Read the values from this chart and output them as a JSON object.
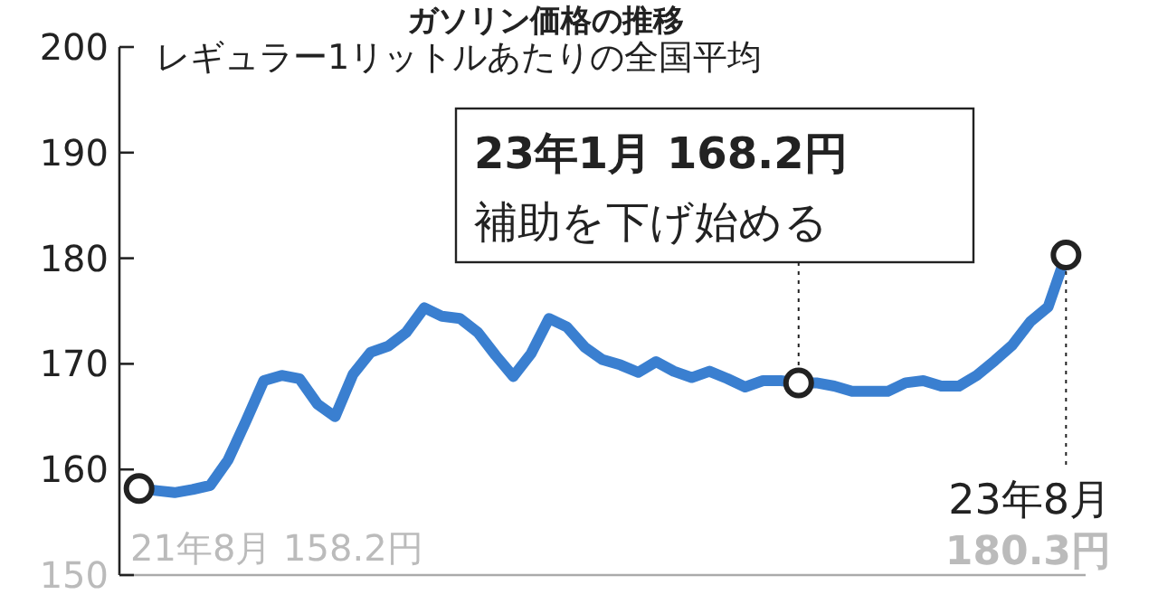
{
  "chart_data": {
    "type": "line",
    "title": "ガソリン価格の推移",
    "subtitle": "レギュラー1リットルあたりの全国平均",
    "categories": [
      null,
      null,
      null,
      null,
      null,
      null,
      null,
      null,
      null,
      null,
      null,
      null,
      null,
      null,
      null,
      null,
      null,
      null,
      null,
      null,
      null,
      null,
      null,
      null,
      null,
      null,
      null,
      null,
      null,
      null,
      null,
      null,
      null,
      null,
      null,
      null,
      null,
      null,
      null,
      null,
      null,
      null,
      null,
      null,
      null,
      null,
      null,
      null,
      null,
      null,
      null,
      null,
      null
    ],
    "series": [
      {
        "color": "#3a7fd0",
        "values": [
          158.2,
          158.0,
          157.8,
          158.1,
          158.5,
          160.9,
          164.6,
          168.4,
          168.9,
          168.6,
          166.2,
          165.0,
          169.0,
          171.1,
          171.7,
          173.0,
          175.3,
          174.5,
          174.3,
          173.0,
          170.8,
          168.8,
          171.0,
          174.3,
          173.5,
          171.6,
          170.4,
          169.9,
          169.2,
          170.2,
          169.3,
          168.7,
          169.3,
          168.6,
          167.8,
          168.4,
          168.4,
          168.2,
          168.2,
          167.9,
          167.4,
          167.4,
          167.4,
          168.2,
          168.4,
          167.9,
          167.9,
          168.9,
          170.3,
          171.8,
          174.0,
          175.4,
          180.3
        ]
      },
      {
        "type": "scatter",
        "color": "#222222",
        "marker": "circle",
        "values": [
          158.2,
          null,
          null,
          null,
          null,
          null,
          null,
          null,
          null,
          null,
          null,
          null,
          null,
          null,
          null,
          null,
          null,
          null,
          null,
          null,
          null,
          null,
          null,
          null,
          null,
          null,
          null,
          null,
          null,
          null,
          null,
          null,
          null,
          null,
          null,
          null,
          null,
          168.2,
          null,
          null,
          null,
          null,
          null,
          null,
          null,
          null,
          null,
          null,
          null,
          null,
          null,
          null,
          180.3
        ]
      }
    ],
    "ylim": [
      150,
      200
    ],
    "yticks": [
      150,
      160,
      170,
      180,
      190,
      200
    ],
    "tick_labels": "y",
    "grid": false,
    "marker": "none",
    "line_style": "solid",
    "annotations": [
      "21年8月 158.2円",
      "23年1月 168.2円",
      "補助を下げ始める",
      "23年8月",
      "180.3円"
    ]
  }
}
